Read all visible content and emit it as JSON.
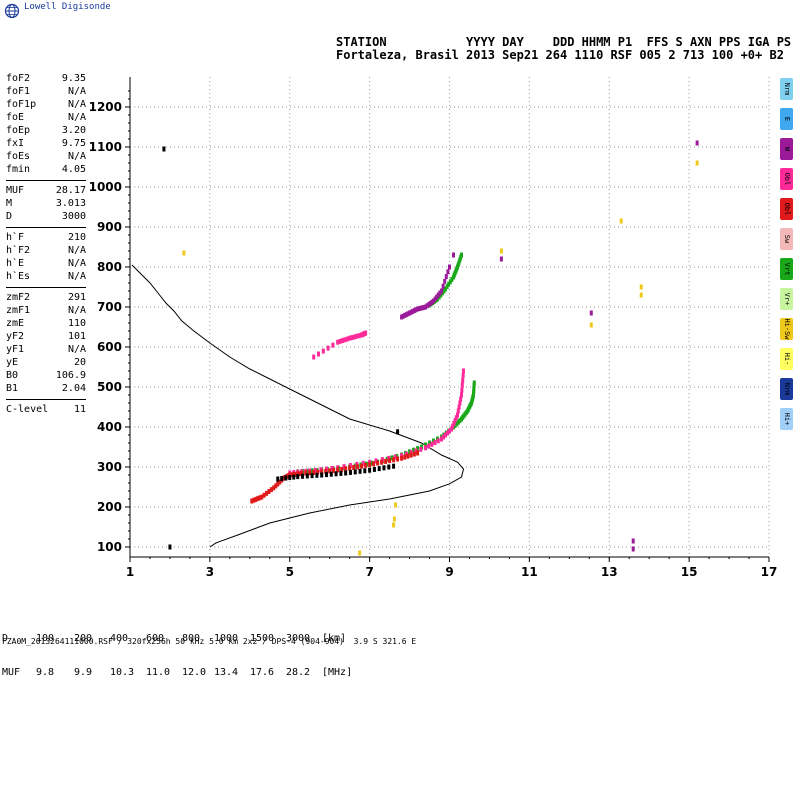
{
  "brand": "Lowell Digisonde",
  "header": {
    "line1": "STATION           YYYY DAY    DDD HHMM P1  FFS S AXN PPS IGA PS",
    "line2": "Fortaleza, Brasil 2013 Sep21 264 1110 RSF 005 2 713 100 +0+ B2"
  },
  "params": [
    {
      "label": "foF2",
      "value": "9.35"
    },
    {
      "label": "foF1",
      "value": "N/A"
    },
    {
      "label": "foF1p",
      "value": "N/A"
    },
    {
      "label": "foE",
      "value": "N/A"
    },
    {
      "label": "foEp",
      "value": "3.20"
    },
    {
      "label": "fxI",
      "value": "9.75"
    },
    {
      "label": "foEs",
      "value": "N/A"
    },
    {
      "label": "fmin",
      "value": "4.05"
    },
    {
      "sep": true
    },
    {
      "label": "MUF",
      "value": "28.17"
    },
    {
      "label": "M",
      "value": "3.013"
    },
    {
      "label": "D",
      "value": "3000"
    },
    {
      "sep": true
    },
    {
      "label": "h`F",
      "value": "210"
    },
    {
      "label": "h`F2",
      "value": "N/A"
    },
    {
      "label": "h`E",
      "value": "N/A"
    },
    {
      "label": "h`Es",
      "value": "N/A"
    },
    {
      "sep": true
    },
    {
      "label": "zmF2",
      "value": "291"
    },
    {
      "label": "zmF1",
      "value": "N/A"
    },
    {
      "label": "zmE",
      "value": "110"
    },
    {
      "label": "yF2",
      "value": "101"
    },
    {
      "label": "yF1",
      "value": "N/A"
    },
    {
      "label": "yE",
      "value": "20"
    },
    {
      "label": "B0",
      "value": "106.9"
    },
    {
      "label": "B1",
      "value": "2.04"
    },
    {
      "sep": true
    },
    {
      "label": "C-level",
      "value": "11"
    }
  ],
  "modes": [
    {
      "label": "Nrm",
      "color": "#7fd0f0"
    },
    {
      "label": "E",
      "color": "#3fa8ef"
    },
    {
      "label": "W",
      "color": "#9a1a9a"
    },
    {
      "label": "Obl",
      "color": "#ff2a9a"
    },
    {
      "label": "Obl",
      "color": "#e01a1a"
    },
    {
      "label": "Sw",
      "color": "#f4b8b8"
    },
    {
      "label": "Vrt",
      "color": "#18a818"
    },
    {
      "label": "Vr+",
      "color": "#c8f4a0"
    },
    {
      "label": "Hi-Sw",
      "color": "#f0c81a"
    },
    {
      "label": "Hi-",
      "color": "#ffff60"
    },
    {
      "label": "Nrm",
      "color": "#1a3a9a"
    },
    {
      "label": "Hi+",
      "color": "#a0d0f8"
    }
  ],
  "dtable": {
    "d_label": "D",
    "d_values": [
      "100",
      "200",
      "400",
      "600",
      "800",
      "1000",
      "1500",
      "3000"
    ],
    "d_unit": "[km]",
    "m_label": "MUF",
    "m_values": [
      "9.8",
      "9.9",
      "10.3",
      "11.0",
      "12.0",
      "13.4",
      "17.6",
      "28.2"
    ],
    "m_unit": "[MHz]"
  },
  "footer": "FZA0M_2013264111000.RSF / 320fx256h 50 kHz 5.0 km 2x2 / DPS-4 (904-904)  3.9 S 321.6 E",
  "chart_data": {
    "type": "scatter",
    "title": "",
    "xlabel": "",
    "ylabel": "",
    "xlim": [
      1,
      17
    ],
    "ylim": [
      75,
      1275
    ],
    "xticks": [
      1,
      3,
      5,
      7,
      9,
      11,
      13,
      15,
      17
    ],
    "yticks": [
      100,
      200,
      300,
      400,
      500,
      600,
      700,
      800,
      900,
      1000,
      1100,
      1200
    ],
    "grid": true,
    "profile": {
      "color": "#000000",
      "x": [
        3.0,
        3.15,
        3.2,
        3.7,
        4.5,
        5.5,
        6.5,
        7.5,
        8.5,
        9.0,
        9.3,
        9.35,
        9.2,
        8.8,
        8.3,
        7.5,
        6.5,
        5.8,
        5.2,
        4.6,
        4.0,
        3.5,
        3.0,
        2.6,
        2.3,
        2.1,
        1.9,
        1.7,
        1.5,
        1.3,
        1.15,
        1.05
      ],
      "y": [
        100,
        110,
        112,
        130,
        160,
        185,
        205,
        220,
        240,
        258,
        275,
        295,
        312,
        330,
        360,
        390,
        420,
        455,
        485,
        515,
        545,
        575,
        610,
        640,
        665,
        690,
        710,
        735,
        760,
        780,
        795,
        805
      ]
    },
    "series": [
      {
        "color": "#18a818",
        "x": [
          5.2,
          5.8,
          6.5,
          7.2,
          7.8,
          8.3,
          8.8,
          9.1,
          9.3,
          9.45,
          9.55,
          9.6,
          9.62
        ],
        "y": [
          288,
          292,
          300,
          312,
          330,
          350,
          375,
          400,
          420,
          440,
          460,
          480,
          510
        ]
      },
      {
        "color": "#ff2a9a",
        "x": [
          5.0,
          5.5,
          6.2,
          7.0,
          7.8,
          8.4,
          8.8,
          9.05,
          9.2,
          9.3,
          9.35
        ],
        "y": [
          285,
          290,
          298,
          312,
          328,
          348,
          370,
          395,
          430,
          480,
          540
        ]
      },
      {
        "color": "#e01a1a",
        "x": [
          4.05,
          4.3,
          4.6,
          4.85,
          5.0,
          5.3,
          5.8,
          6.3,
          6.8,
          7.3,
          7.8,
          8.2
        ],
        "y": [
          215,
          225,
          248,
          272,
          280,
          284,
          288,
          294,
          302,
          312,
          322,
          335
        ]
      },
      {
        "color": "#000000",
        "x": [
          4.7,
          5.2,
          5.8,
          6.4,
          7.0,
          7.6
        ],
        "y": [
          270,
          276,
          280,
          285,
          292,
          302
        ]
      },
      {
        "color": "#18a818",
        "x": [
          8.5,
          8.7,
          8.9,
          9.1,
          9.2,
          9.3
        ],
        "y": [
          705,
          720,
          745,
          775,
          800,
          830
        ]
      },
      {
        "color": "#9a1a9a",
        "x": [
          7.8,
          8.0,
          8.2,
          8.4,
          8.6,
          8.8,
          9.0
        ],
        "y": [
          675,
          685,
          695,
          700,
          715,
          740,
          800
        ]
      },
      {
        "color": "#ff2a9a",
        "x": [
          5.6,
          6.2,
          6.5,
          6.8,
          6.9
        ],
        "y": [
          575,
          612,
          622,
          630,
          635
        ]
      },
      {
        "color": "#f0c81a",
        "x": [
          2.35,
          6.75,
          7.6,
          7.62,
          7.65,
          12.55,
          13.3,
          13.8,
          13.8,
          15.2,
          10.3
        ],
        "y": [
          835,
          85,
          155,
          170,
          205,
          655,
          915,
          730,
          750,
          1060,
          840
        ]
      },
      {
        "color": "#000000",
        "x": [
          1.85,
          2.0,
          7.7
        ],
        "y": [
          1095,
          100,
          388
        ]
      },
      {
        "color": "#9a1a9a",
        "x": [
          9.1,
          10.3,
          12.55,
          13.6,
          13.6,
          15.2
        ],
        "y": [
          830,
          820,
          685,
          95,
          115,
          1110
        ]
      }
    ]
  }
}
